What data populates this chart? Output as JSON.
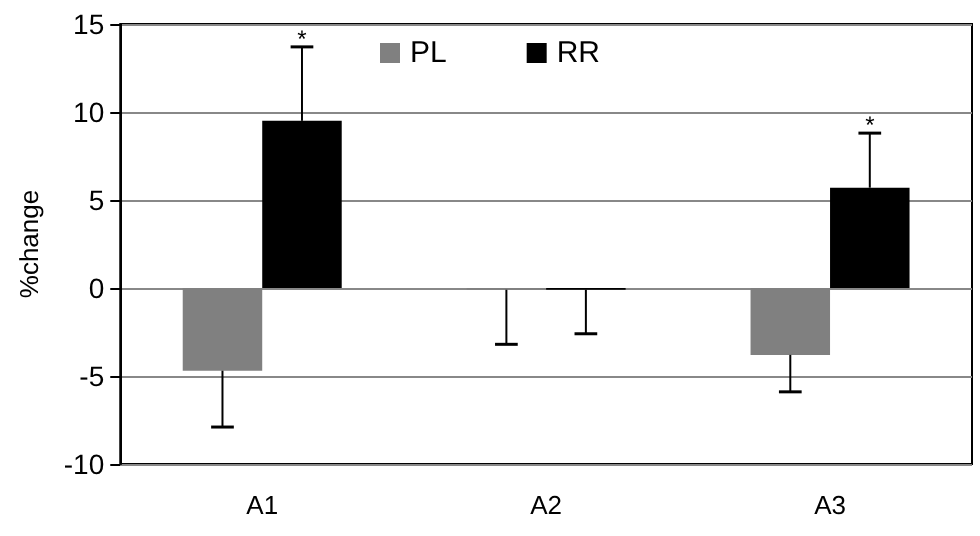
{
  "chart_data": {
    "type": "bar",
    "ylabel": "%change",
    "categories": [
      "A1",
      "A2",
      "A3"
    ],
    "series": [
      {
        "name": "PL",
        "color": "#808080",
        "values": [
          -4.7,
          -0.1,
          -3.8
        ],
        "errors": [
          [
            -7.9,
            -4.7
          ],
          [
            -3.2,
            -0.1
          ],
          [
            -5.9,
            -3.8
          ]
        ]
      },
      {
        "name": "RR",
        "color": "#000000",
        "values": [
          9.5,
          -0.1,
          5.7
        ],
        "errors": [
          [
            9.5,
            13.7
          ],
          [
            -2.6,
            -0.1
          ],
          [
            5.7,
            8.8
          ]
        ],
        "value_labels": [
          "*",
          null,
          "*"
        ]
      }
    ],
    "ylim": [
      -10,
      15
    ],
    "yticks": [
      -10,
      -5,
      0,
      5,
      10,
      15
    ],
    "grid": "y",
    "legend": "top"
  }
}
